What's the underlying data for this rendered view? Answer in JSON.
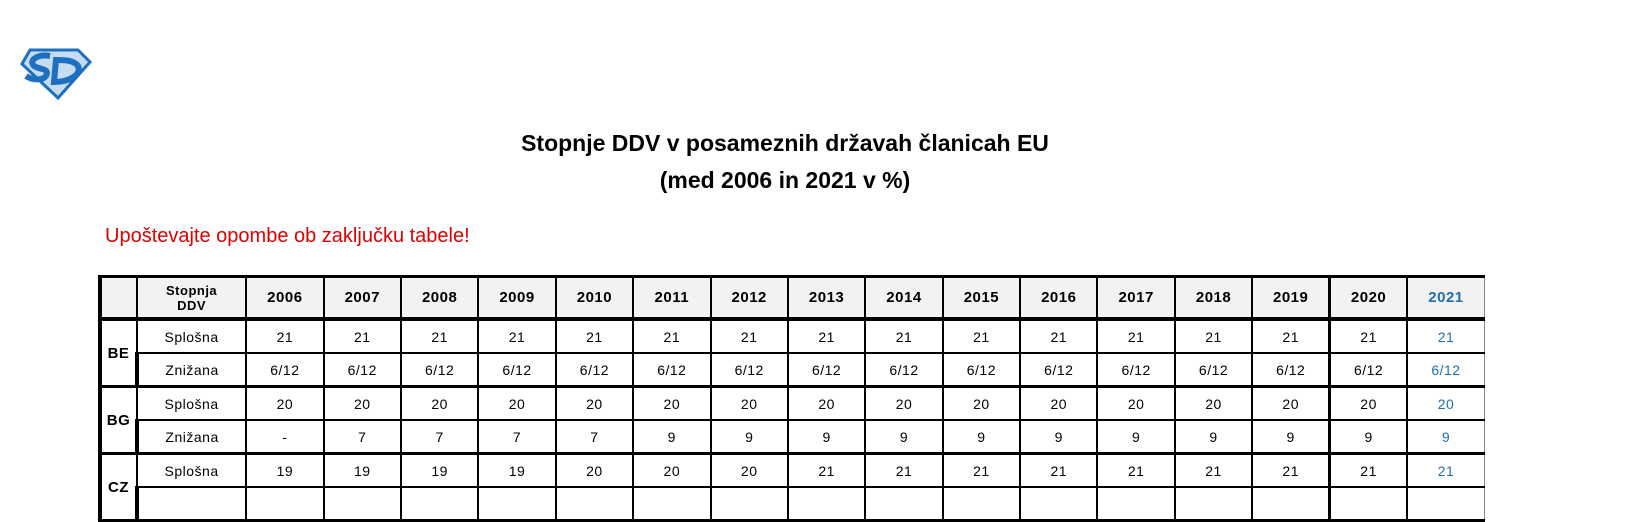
{
  "logo": {
    "text": "SD",
    "colors": {
      "fill": "#c6dcf2",
      "stroke": "#1e6fbf"
    }
  },
  "title": {
    "line1": "Stopnje DDV v posameznih državah članicah EU",
    "line2": "(med 2006 in 2021 v %)"
  },
  "note": "Upoštevajte opombe ob zaključku tabele!",
  "colors": {
    "note": "#e00000",
    "highlight_year": "#1f6fb0"
  },
  "table": {
    "rate_header": "Stopnja DDV",
    "years": [
      "2006",
      "2007",
      "2008",
      "2009",
      "2010",
      "2011",
      "2012",
      "2013",
      "2014",
      "2015",
      "2016",
      "2017",
      "2018",
      "2019",
      "2020",
      "2021"
    ],
    "countries": [
      {
        "code": "BE",
        "rows": [
          {
            "rate": "Splošna",
            "values": [
              "21",
              "21",
              "21",
              "21",
              "21",
              "21",
              "21",
              "21",
              "21",
              "21",
              "21",
              "21",
              "21",
              "21",
              "21",
              "21"
            ]
          },
          {
            "rate": "Znižana",
            "values": [
              "6/12",
              "6/12",
              "6/12",
              "6/12",
              "6/12",
              "6/12",
              "6/12",
              "6/12",
              "6/12",
              "6/12",
              "6/12",
              "6/12",
              "6/12",
              "6/12",
              "6/12",
              "6/12"
            ]
          }
        ]
      },
      {
        "code": "BG",
        "rows": [
          {
            "rate": "Splošna",
            "values": [
              "20",
              "20",
              "20",
              "20",
              "20",
              "20",
              "20",
              "20",
              "20",
              "20",
              "20",
              "20",
              "20",
              "20",
              "20",
              "20"
            ]
          },
          {
            "rate": "Znižana",
            "values": [
              "-",
              "7",
              "7",
              "7",
              "7",
              "9",
              "9",
              "9",
              "9",
              "9",
              "9",
              "9",
              "9",
              "9",
              "9",
              "9"
            ]
          }
        ]
      },
      {
        "code": "CZ",
        "rows": [
          {
            "rate": "Splošna",
            "values": [
              "19",
              "19",
              "19",
              "19",
              "20",
              "20",
              "20",
              "21",
              "21",
              "21",
              "21",
              "21",
              "21",
              "21",
              "21",
              "21"
            ]
          }
        ]
      }
    ]
  }
}
